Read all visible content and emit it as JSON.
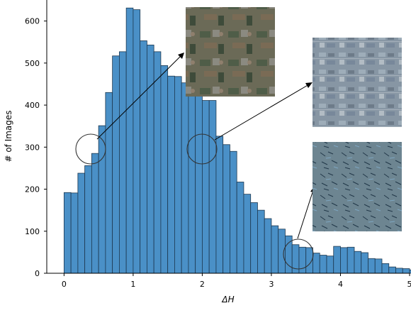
{
  "chart_data": {
    "type": "bar",
    "title": "",
    "xlabel": "ΔH",
    "ylabel": "# of Images",
    "xlim": [
      -0.25,
      5.0
    ],
    "ylim": [
      0,
      650
    ],
    "xticks": [
      0,
      1,
      2,
      3,
      4,
      5
    ],
    "xtick_labels": [
      "0",
      "1",
      "2",
      "3",
      "4",
      "5"
    ],
    "yticks": [
      0,
      100,
      200,
      300,
      400,
      500,
      600
    ],
    "ytick_labels": [
      "0",
      "100",
      "200",
      "300",
      "400",
      "500",
      "600"
    ],
    "bin_width": 0.1,
    "bin_start": 0,
    "bar_color": "#4a90c7",
    "edge_color": "#1d3850",
    "values": [
      192,
      191,
      238,
      256,
      285,
      351,
      430,
      517,
      527,
      631,
      627,
      553,
      543,
      527,
      494,
      469,
      468,
      453,
      488,
      425,
      411,
      411,
      326,
      306,
      290,
      217,
      188,
      168,
      150,
      130,
      113,
      105,
      89,
      68,
      62,
      61,
      48,
      43,
      41,
      64,
      61,
      62,
      52,
      49,
      35,
      34,
      23,
      15,
      12,
      11,
      8,
      8,
      7,
      4,
      2,
      0,
      0,
      0,
      0,
      0,
      0,
      0,
      0,
      0,
      0,
      0,
      0,
      0,
      0,
      0,
      0,
      0,
      0,
      0,
      0,
      0,
      0
    ],
    "annotations": [
      {
        "circle_center": [
          0.38,
          300
        ],
        "target": "inset-top",
        "description": "circle"
      },
      {
        "circle_center": [
          2.05,
          300
        ],
        "target": "inset-middle",
        "description": "circle"
      },
      {
        "circle_center": [
          3.45,
          50
        ],
        "target": "inset-bottom",
        "description": "circle"
      }
    ]
  }
}
